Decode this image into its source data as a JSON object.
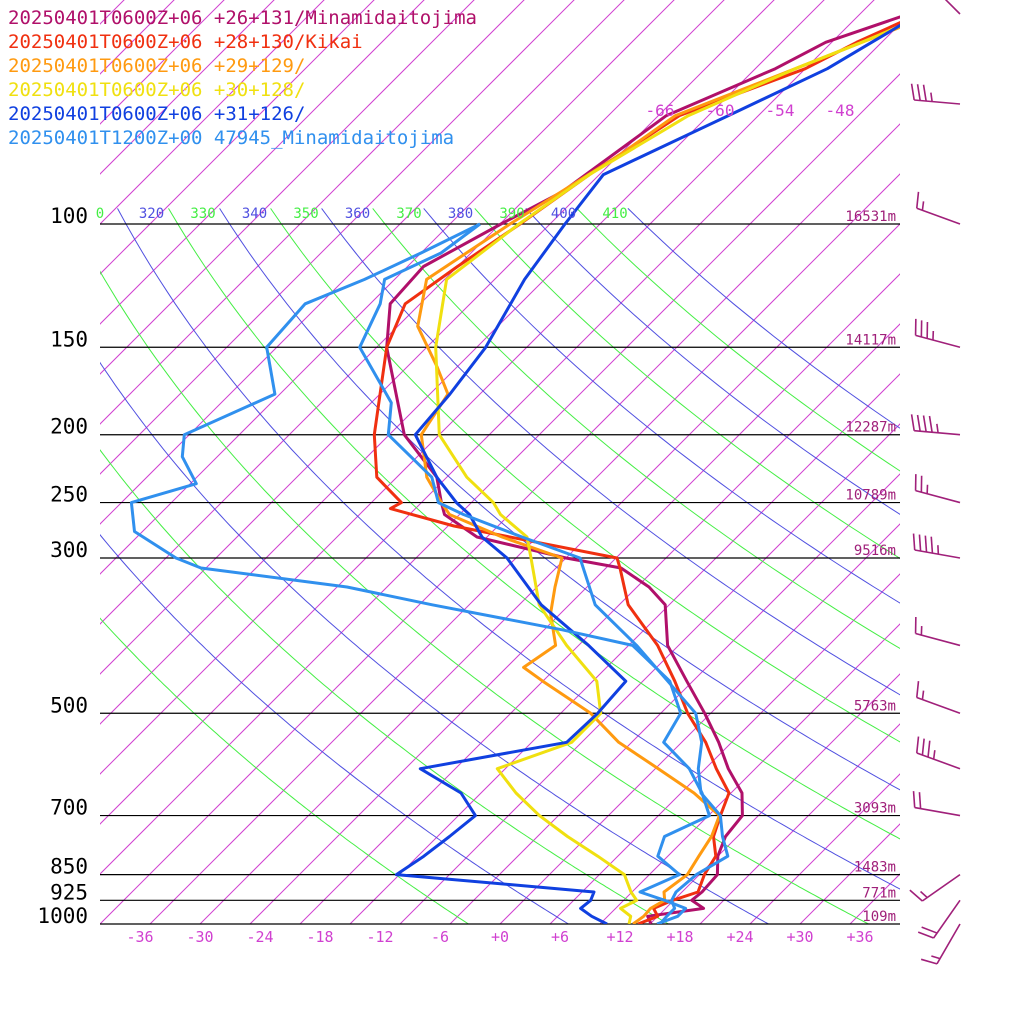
{
  "chart_data": {
    "type": "line",
    "chart_kind": "skew-T log-P sounding",
    "title": "",
    "xlabel": "",
    "ylabel": "",
    "legend_position": "top-left",
    "legend": [
      {
        "text": "20250401T0600Z+06 +26+131/Minamidaitojima",
        "color": "#b0106a"
      },
      {
        "text": "20250401T0600Z+06 +28+130/Kikai",
        "color": "#f03010"
      },
      {
        "text": "20250401T0600Z+06 +29+129/",
        "color": "#ff9a10"
      },
      {
        "text": "20250401T0600Z+06 +30+128/",
        "color": "#f0e010"
      },
      {
        "text": "20250401T0600Z+06 +31+126/",
        "color": "#1040e0"
      },
      {
        "text": "20250401T1200Z+00 47945_Minamidaitojima",
        "color": "#3090ee"
      }
    ],
    "pressure_levels": [
      {
        "p": 100,
        "label": "100",
        "height": "16531m"
      },
      {
        "p": 150,
        "label": "150",
        "height": "14117m"
      },
      {
        "p": 200,
        "label": "200",
        "height": "12287m"
      },
      {
        "p": 250,
        "label": "250",
        "height": "10789m"
      },
      {
        "p": 300,
        "label": "300",
        "height": "9516m"
      },
      {
        "p": 500,
        "label": "500",
        "height": "5763m"
      },
      {
        "p": 700,
        "label": "700",
        "height": "3093m"
      },
      {
        "p": 850,
        "label": "850",
        "height": "1483m"
      },
      {
        "p": 925,
        "label": "925",
        "height": "771m"
      },
      {
        "p": 1000,
        "label": "1000",
        "height": "109m"
      }
    ],
    "temperature_ticks": [
      "-36",
      "-30",
      "-24",
      "-18",
      "-12",
      "-6",
      "+0",
      "+6",
      "+12",
      "+18",
      "+24",
      "+30",
      "+36"
    ],
    "upper_ticks": [
      "-66",
      "-60",
      "-54",
      "-48"
    ],
    "theta_labels": [
      {
        "text": "0",
        "color": "#44ee44"
      },
      {
        "text": "320",
        "color": "#5050e0"
      },
      {
        "text": "330",
        "color": "#44ee44"
      },
      {
        "text": "340",
        "color": "#5050e0"
      },
      {
        "text": "350",
        "color": "#44ee44"
      },
      {
        "text": "360",
        "color": "#5050e0"
      },
      {
        "text": "370",
        "color": "#44ee44"
      },
      {
        "text": "380",
        "color": "#5050e0"
      },
      {
        "text": "390",
        "color": "#44ee44"
      },
      {
        "text": "400",
        "color": "#5050e0"
      },
      {
        "text": "410",
        "color": "#44ee44"
      }
    ],
    "temperature_range_c": [
      -42,
      42
    ],
    "pressure_range_hpa": [
      1000,
      100
    ],
    "grid": true,
    "colors": {
      "isotherm": "#d040d0",
      "dry_adiabat_a": "#5050e0",
      "dry_adiabat_b": "#44ee44",
      "isobar": "#000000",
      "wind_barb": "#a0207a"
    },
    "series": [
      {
        "name": "20250401T0600Z+06 +26+131/Minamidaitojima",
        "color": "#b0106a",
        "profile": [
          [
            1000,
            15.1
          ],
          [
            975,
            14.0
          ],
          [
            950,
            18.8
          ],
          [
            925,
            16.8
          ],
          [
            900,
            17.0
          ],
          [
            850,
            16.8
          ],
          [
            800,
            15.0
          ],
          [
            750,
            13.8
          ],
          [
            700,
            13.4
          ],
          [
            650,
            11.1
          ],
          [
            600,
            7.3
          ],
          [
            550,
            3.7
          ],
          [
            500,
            -0.6
          ],
          [
            450,
            -5.6
          ],
          [
            400,
            -11.1
          ],
          [
            350,
            -15.4
          ],
          [
            330,
            -18.8
          ],
          [
            310,
            -23.5
          ],
          [
            300,
            -30.0
          ],
          [
            280,
            -41.0
          ],
          [
            260,
            -46.5
          ],
          [
            250,
            -48.0
          ],
          [
            230,
            -51.0
          ],
          [
            200,
            -58.5
          ],
          [
            150,
            -69.0
          ],
          [
            130,
            -73.0
          ],
          [
            115,
            -73.4
          ],
          [
            100,
            -69.9
          ],
          [
            90,
            -67.0
          ],
          [
            70,
            -64.2
          ],
          [
            60,
            -58.0
          ],
          [
            55,
            -55.6
          ],
          [
            50,
            -50.0
          ]
        ]
      },
      {
        "name": "20250401T0600Z+06 +28+130/Kikai",
        "color": "#f03010",
        "profile": [
          [
            1000,
            13.8
          ],
          [
            975,
            15.0
          ],
          [
            950,
            13.8
          ],
          [
            925,
            14.9
          ],
          [
            900,
            16.6
          ],
          [
            850,
            15.5
          ],
          [
            800,
            14.8
          ],
          [
            750,
            12.6
          ],
          [
            700,
            11.2
          ],
          [
            650,
            9.8
          ],
          [
            600,
            6.1
          ],
          [
            550,
            2.4
          ],
          [
            500,
            -2.3
          ],
          [
            450,
            -6.8
          ],
          [
            400,
            -12.1
          ],
          [
            350,
            -19.1
          ],
          [
            310,
            -23.6
          ],
          [
            300,
            -24.9
          ],
          [
            270,
            -44.4
          ],
          [
            255,
            -52.5
          ],
          [
            250,
            -52.0
          ],
          [
            230,
            -57.0
          ],
          [
            200,
            -61.5
          ],
          [
            150,
            -69.0
          ],
          [
            130,
            -71.5
          ],
          [
            115,
            -70.0
          ],
          [
            100,
            -68.0
          ],
          [
            85,
            -66.0
          ],
          [
            70,
            -62.9
          ],
          [
            60,
            -55.0
          ],
          [
            55,
            -52.5
          ],
          [
            50,
            -49.0
          ]
        ]
      },
      {
        "name": "20250401T0600Z+06 +29+129/",
        "color": "#ff9a10",
        "profile": [
          [
            1000,
            13.3
          ],
          [
            975,
            13.6
          ],
          [
            950,
            13.5
          ],
          [
            925,
            14.1
          ],
          [
            900,
            13.2
          ],
          [
            850,
            13.8
          ],
          [
            800,
            13.1
          ],
          [
            750,
            12.4
          ],
          [
            700,
            11.1
          ],
          [
            650,
            6.3
          ],
          [
            600,
            0.3
          ],
          [
            550,
            -6.3
          ],
          [
            500,
            -12.0
          ],
          [
            450,
            -20.0
          ],
          [
            430,
            -23.3
          ],
          [
            400,
            -22.3
          ],
          [
            360,
            -26.0
          ],
          [
            330,
            -28.2
          ],
          [
            300,
            -30.4
          ],
          [
            280,
            -38.5
          ],
          [
            260,
            -46.0
          ],
          [
            250,
            -48.0
          ],
          [
            230,
            -52.0
          ],
          [
            200,
            -56.8
          ],
          [
            175,
            -58.2
          ],
          [
            160,
            -62.0
          ],
          [
            140,
            -68.0
          ],
          [
            120,
            -71.8
          ],
          [
            100,
            -69.0
          ],
          [
            80,
            -65.0
          ],
          [
            70,
            -63.3
          ],
          [
            60,
            -56.0
          ],
          [
            55,
            -52.0
          ],
          [
            50,
            -47.5
          ]
        ]
      },
      {
        "name": "20250401T0600Z+06 +30+128/",
        "color": "#f0e010",
        "profile": [
          [
            1000,
            12.9
          ],
          [
            975,
            12.3
          ],
          [
            950,
            10.5
          ],
          [
            925,
            11.3
          ],
          [
            900,
            9.9
          ],
          [
            850,
            7.5
          ],
          [
            800,
            3.0
          ],
          [
            750,
            -2.0
          ],
          [
            700,
            -6.9
          ],
          [
            650,
            -11.5
          ],
          [
            600,
            -15.8
          ],
          [
            550,
            -11.0
          ],
          [
            500,
            -11.0
          ],
          [
            450,
            -14.6
          ],
          [
            400,
            -21.2
          ],
          [
            350,
            -28.0
          ],
          [
            300,
            -33.5
          ],
          [
            280,
            -36.0
          ],
          [
            260,
            -40.9
          ],
          [
            250,
            -42.8
          ],
          [
            230,
            -48.0
          ],
          [
            200,
            -55.0
          ],
          [
            150,
            -64.1
          ],
          [
            120,
            -69.8
          ],
          [
            100,
            -68.1
          ],
          [
            85,
            -66.0
          ],
          [
            70,
            -62.0
          ],
          [
            60,
            -56.0
          ],
          [
            55,
            -52.0
          ],
          [
            50,
            -48.0
          ]
        ]
      },
      {
        "name": "20250401T0600Z+06 +31+126/",
        "color": "#1040e0",
        "profile": [
          [
            1000,
            10.7
          ],
          [
            975,
            8.4
          ],
          [
            950,
            6.5
          ],
          [
            925,
            6.7
          ],
          [
            900,
            6.2
          ],
          [
            850,
            -15.3
          ],
          [
            800,
            -14.4
          ],
          [
            750,
            -13.8
          ],
          [
            700,
            -13.3
          ],
          [
            650,
            -17.0
          ],
          [
            600,
            -23.5
          ],
          [
            550,
            -11.5
          ],
          [
            500,
            -11.3
          ],
          [
            450,
            -11.7
          ],
          [
            400,
            -19.0
          ],
          [
            350,
            -27.8
          ],
          [
            300,
            -35.9
          ],
          [
            280,
            -40.5
          ],
          [
            260,
            -44.0
          ],
          [
            250,
            -46.5
          ],
          [
            230,
            -51.0
          ],
          [
            200,
            -57.4
          ],
          [
            175,
            -58.0
          ],
          [
            150,
            -59.1
          ],
          [
            120,
            -62.0
          ],
          [
            100,
            -63.5
          ],
          [
            85,
            -64.6
          ],
          [
            70,
            -58.0
          ],
          [
            60,
            -52.8
          ],
          [
            55,
            -51.0
          ],
          [
            50,
            -49.0
          ]
        ]
      },
      {
        "name": "20250401T1200Z+00 47945_Minamidaitojima",
        "color": "#3090ee",
        "profile": [
          [
            1000,
            16.0
          ],
          [
            975,
            15.9
          ],
          [
            950,
            15.9
          ],
          [
            925,
            14.8
          ],
          [
            900,
            14.4
          ],
          [
            850,
            14.7
          ],
          [
            800,
            16.0
          ],
          [
            750,
            13.5
          ],
          [
            700,
            11.2
          ],
          [
            650,
            7.0
          ],
          [
            600,
            4.3
          ],
          [
            550,
            2.0
          ],
          [
            500,
            -1.5
          ],
          [
            450,
            -7.5
          ],
          [
            400,
            -14.2
          ],
          [
            350,
            -22.4
          ],
          [
            300,
            -28.6
          ],
          [
            280,
            -36.5
          ],
          [
            260,
            -44.6
          ],
          [
            250,
            -48.3
          ],
          [
            230,
            -51.5
          ],
          [
            200,
            -60.1
          ],
          [
            180,
            -63.0
          ],
          [
            150,
            -71.7
          ],
          [
            130,
            -74.0
          ],
          [
            120,
            -76.0
          ],
          [
            110,
            -73.0
          ],
          [
            100,
            -72.0
          ]
        ],
        "dewpoint": [
          [
            1000,
            15.7
          ],
          [
            975,
            17.0
          ],
          [
            950,
            17.0
          ],
          [
            925,
            14.1
          ],
          [
            900,
            10.8
          ],
          [
            850,
            13.0
          ],
          [
            800,
            9.0
          ],
          [
            750,
            7.7
          ],
          [
            700,
            10.1
          ],
          [
            650,
            7.1
          ],
          [
            600,
            3.4
          ],
          [
            550,
            -1.8
          ],
          [
            500,
            -3.0
          ],
          [
            450,
            -7.3
          ],
          [
            400,
            -14.6
          ],
          [
            380,
            -23.2
          ],
          [
            350,
            -38.7
          ],
          [
            330,
            -49.0
          ],
          [
            310,
            -65.5
          ],
          [
            300,
            -69.0
          ],
          [
            275,
            -75.8
          ],
          [
            250,
            -79.0
          ],
          [
            235,
            -74.4
          ],
          [
            215,
            -78.5
          ],
          [
            200,
            -80.5
          ],
          [
            175,
            -75.5
          ],
          [
            150,
            -81.0
          ],
          [
            130,
            -81.5
          ],
          [
            120,
            -78.0
          ],
          [
            110,
            -75.0
          ],
          [
            100,
            -72.0
          ]
        ]
      }
    ],
    "wind_barbs": [
      {
        "p": 45,
        "speed_kt": 20,
        "direction_deg": 315
      },
      {
        "p": 70,
        "speed_kt": 35,
        "direction_deg": 275
      },
      {
        "p": 100,
        "speed_kt": 15,
        "direction_deg": 290
      },
      {
        "p": 150,
        "speed_kt": 35,
        "direction_deg": 285
      },
      {
        "p": 200,
        "speed_kt": 45,
        "direction_deg": 275
      },
      {
        "p": 250,
        "speed_kt": 25,
        "direction_deg": 285
      },
      {
        "p": 300,
        "speed_kt": 45,
        "direction_deg": 280
      },
      {
        "p": 400,
        "speed_kt": 15,
        "direction_deg": 285
      },
      {
        "p": 500,
        "speed_kt": 15,
        "direction_deg": 290
      },
      {
        "p": 600,
        "speed_kt": 35,
        "direction_deg": 290
      },
      {
        "p": 700,
        "speed_kt": 20,
        "direction_deg": 280
      },
      {
        "p": 850,
        "speed_kt": 15,
        "direction_deg": 235
      },
      {
        "p": 925,
        "speed_kt": 20,
        "direction_deg": 215
      },
      {
        "p": 1000,
        "speed_kt": 15,
        "direction_deg": 210
      }
    ]
  }
}
